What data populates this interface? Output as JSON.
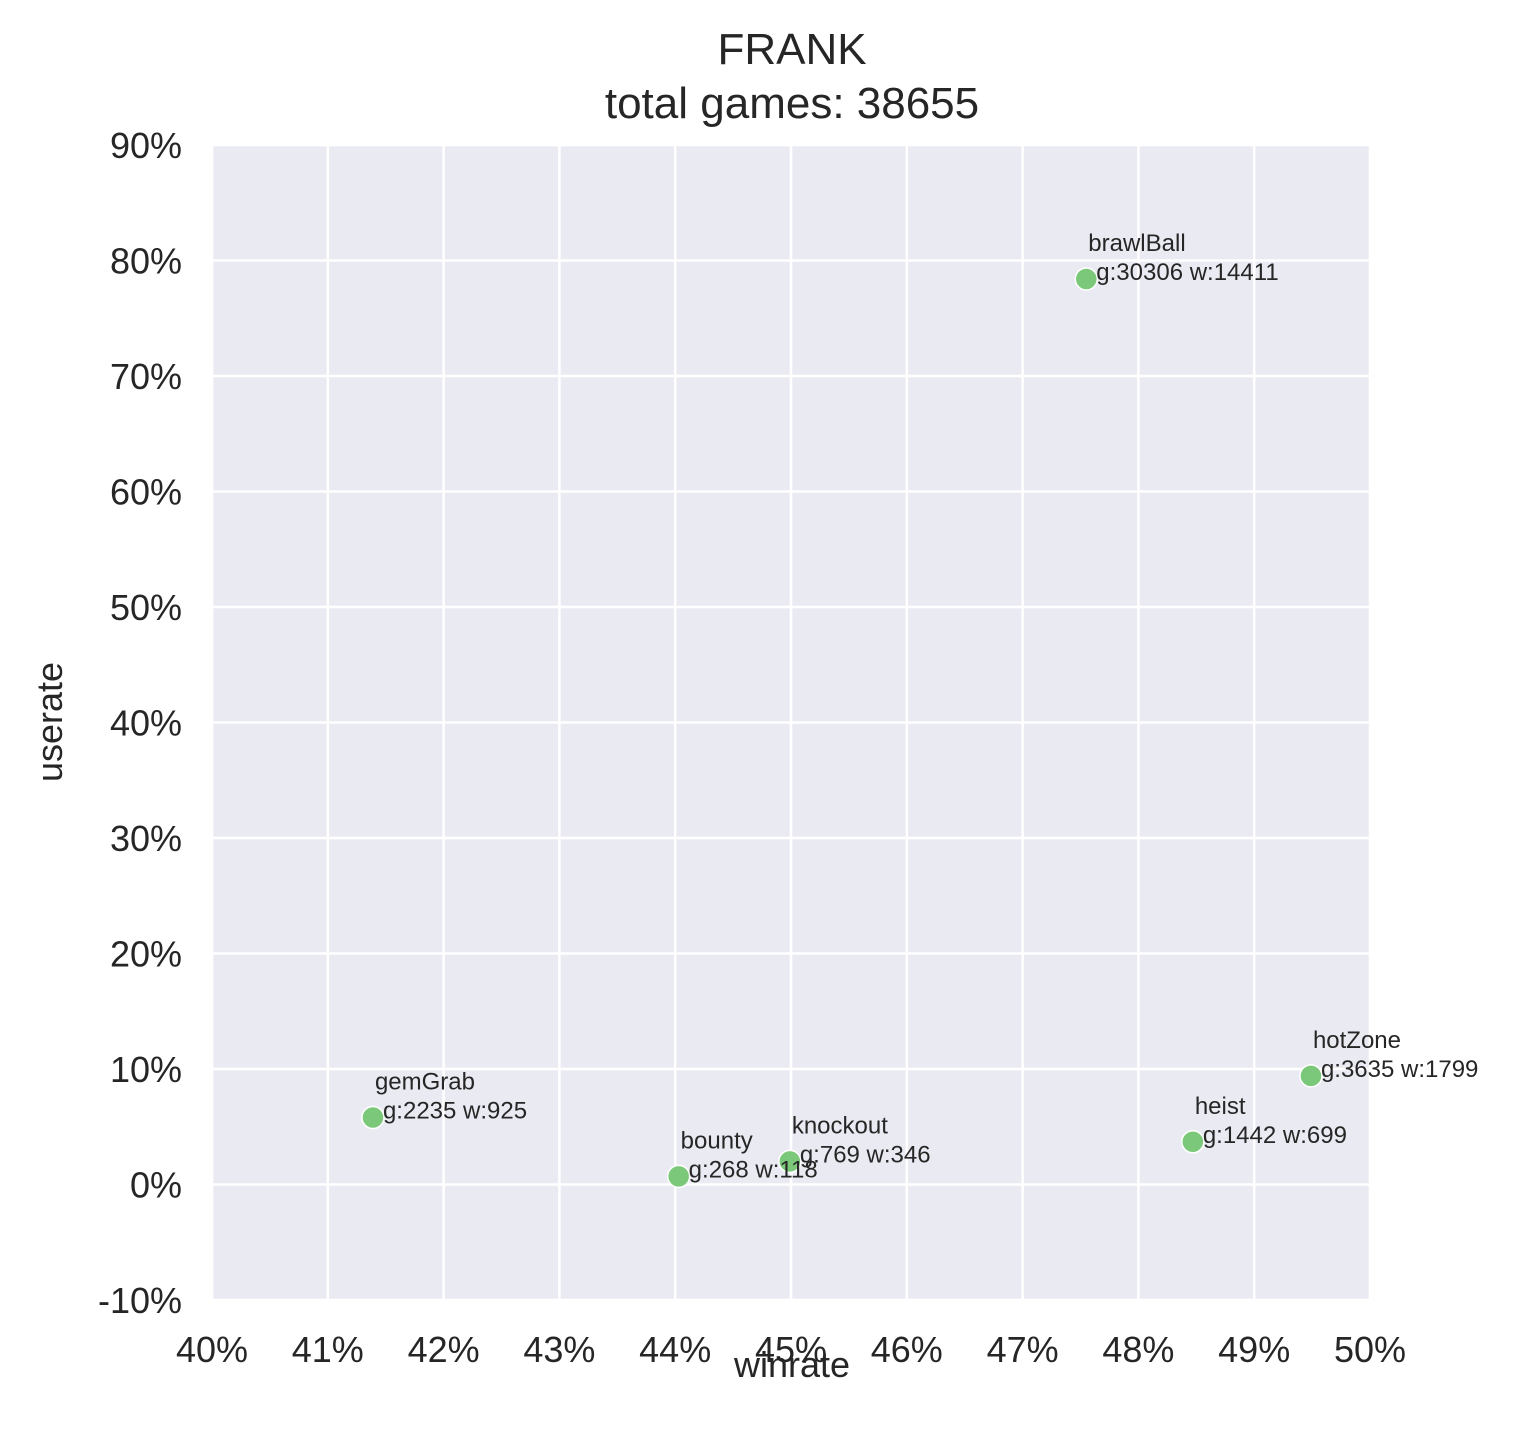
{
  "chart_data": {
    "type": "scatter",
    "title": "FRANK",
    "subtitle": "total games: 38655",
    "xlabel": "winrate",
    "ylabel": "userate",
    "xlim": [
      40,
      50
    ],
    "ylim": [
      -10,
      90
    ],
    "x_ticks": [
      "40%",
      "41%",
      "42%",
      "43%",
      "44%",
      "45%",
      "46%",
      "47%",
      "48%",
      "49%",
      "50%"
    ],
    "y_ticks": [
      "-10%",
      "0%",
      "10%",
      "20%",
      "30%",
      "40%",
      "50%",
      "60%",
      "70%",
      "80%",
      "90%"
    ],
    "grid": true,
    "point_color": "#7cc87a",
    "background_color": "#eaeaf2",
    "points": [
      {
        "name": "brawlBall",
        "info": "g:30306 w:14411",
        "x": 47.55,
        "y": 78.4
      },
      {
        "name": "gemGrab",
        "info": "g:2235 w:925",
        "x": 41.39,
        "y": 5.8
      },
      {
        "name": "bounty",
        "info": "g:268 w:118",
        "x": 44.03,
        "y": 0.7
      },
      {
        "name": "knockout",
        "info": "g:769 w:346",
        "x": 44.99,
        "y": 2.0
      },
      {
        "name": "heist",
        "info": "g:1442 w:699",
        "x": 48.47,
        "y": 3.7
      },
      {
        "name": "hotZone",
        "info": "g:3635 w:1799",
        "x": 49.49,
        "y": 9.4
      }
    ]
  }
}
